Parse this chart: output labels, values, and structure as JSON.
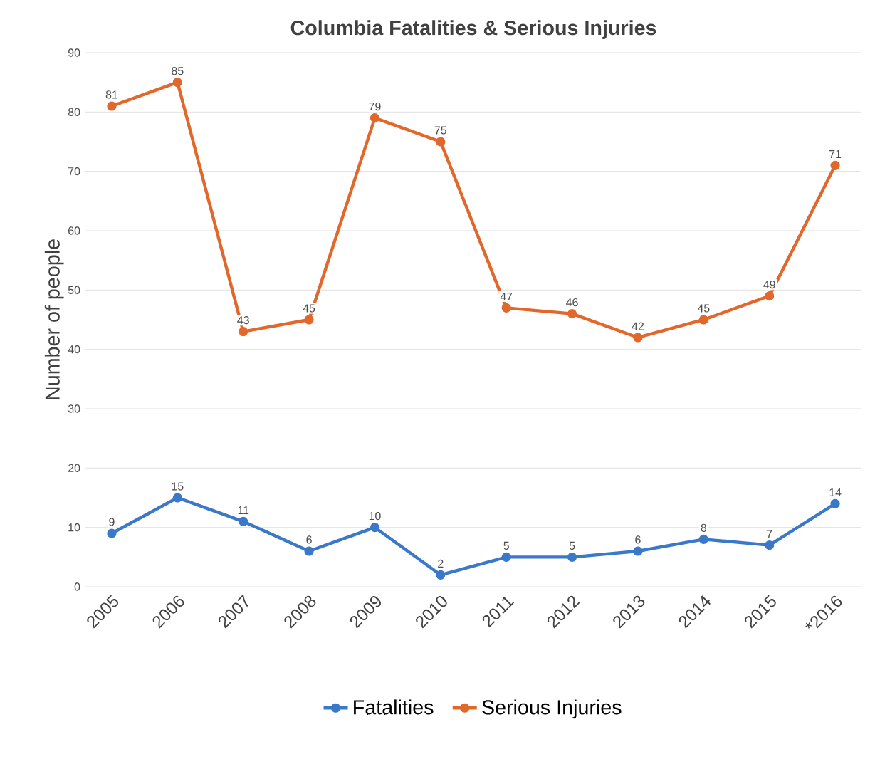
{
  "chart_data": {
    "type": "line",
    "title": "Columbia Fatalities & Serious Injuries",
    "ylabel": "Number of people",
    "categories": [
      "2005",
      "2006",
      "2007",
      "2008",
      "2009",
      "2010",
      "2011",
      "2012",
      "2013",
      "2014",
      "2015",
      "*2016"
    ],
    "series": [
      {
        "name": "Fatalities",
        "color": "#3a78c9",
        "values": [
          9,
          15,
          11,
          6,
          10,
          2,
          5,
          5,
          6,
          8,
          7,
          14
        ]
      },
      {
        "name": "Serious Injuries",
        "color": "#e2672a",
        "values": [
          81,
          85,
          43,
          45,
          79,
          75,
          47,
          46,
          42,
          45,
          49,
          71
        ]
      }
    ],
    "ylim": [
      0,
      90
    ],
    "yticks": [
      0,
      10,
      20,
      30,
      40,
      50,
      60,
      70,
      80,
      90
    ],
    "grid": "y",
    "legend": "bottom",
    "marker": "circle",
    "data_labels": true
  }
}
